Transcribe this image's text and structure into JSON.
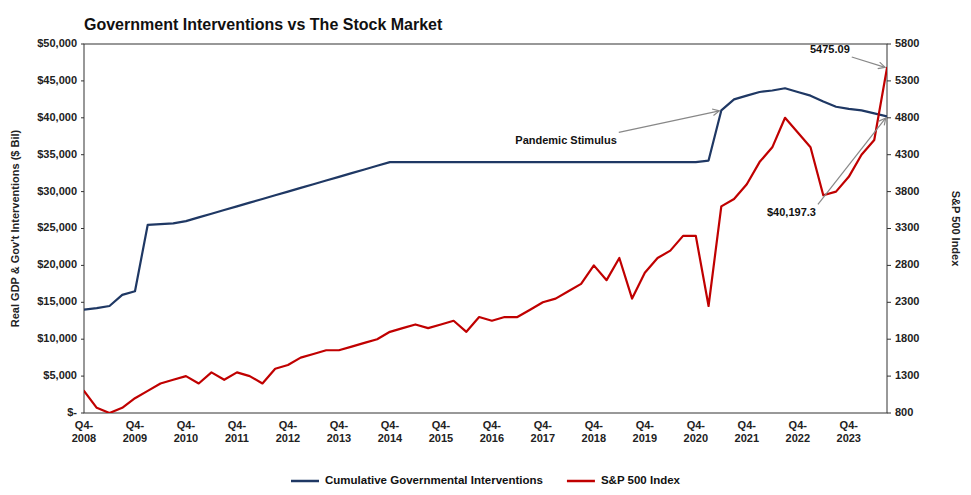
{
  "chart_data": {
    "type": "line",
    "title": "Government Interventions vs The Stock Market",
    "ylabel": "Real GDP & Gov't Interventions ($ Bil)",
    "y2label": "S&P 500 Index",
    "background_color": "#ffffff",
    "categories": [
      "Q4-\n2008",
      null,
      null,
      null,
      "Q4-\n2009",
      null,
      null,
      null,
      "Q4-\n2010",
      null,
      null,
      null,
      "Q4-\n2011",
      null,
      null,
      null,
      "Q4-\n2012",
      null,
      null,
      null,
      "Q4-\n2013",
      null,
      null,
      null,
      "Q4-\n2014",
      null,
      null,
      null,
      "Q4-\n2015",
      null,
      null,
      null,
      "Q4-\n2016",
      null,
      null,
      null,
      "Q4-\n2017",
      null,
      null,
      null,
      "Q4-\n2018",
      null,
      null,
      null,
      "Q4-\n2019",
      null,
      null,
      null,
      "Q4-\n2020",
      null,
      null,
      null,
      "Q4-\n2021",
      null,
      null,
      null,
      "Q4-\n2022",
      null,
      null,
      null,
      "Q4-\n2023",
      null,
      null,
      null
    ],
    "series": [
      {
        "name": "Cumulative Governmental Interventions",
        "color": "#1F3864",
        "axis": "y",
        "values": [
          14000,
          14200,
          14500,
          16000,
          16500,
          25500,
          25600,
          25700,
          26000,
          26500,
          27000,
          27500,
          28000,
          28500,
          29000,
          29500,
          30000,
          30500,
          31000,
          31500,
          32000,
          32500,
          33000,
          33500,
          34000,
          34000,
          34000,
          34000,
          34000,
          34000,
          34000,
          34000,
          34000,
          34000,
          34000,
          34000,
          34000,
          34000,
          34000,
          34000,
          34000,
          34000,
          34000,
          34000,
          34000,
          34000,
          34000,
          34000,
          34000,
          34200,
          41000,
          42500,
          43000,
          43500,
          43700,
          44000,
          43500,
          43000,
          42200,
          41500,
          41200,
          41000,
          40600,
          40197
        ]
      },
      {
        "name": "S&P 500 Index",
        "color": "#C00000",
        "axis": "y2",
        "values": [
          1100,
          870,
          800,
          870,
          1000,
          1100,
          1200,
          1250,
          1300,
          1200,
          1350,
          1250,
          1350,
          1300,
          1200,
          1400,
          1450,
          1550,
          1600,
          1650,
          1650,
          1700,
          1750,
          1800,
          1900,
          1950,
          2000,
          1950,
          2000,
          2050,
          1900,
          2100,
          2050,
          2100,
          2100,
          2200,
          2300,
          2350,
          2450,
          2550,
          2800,
          2600,
          2900,
          2350,
          2700,
          2900,
          3000,
          3200,
          3200,
          2250,
          3600,
          3700,
          3900,
          4200,
          4400,
          4800,
          4600,
          4400,
          3750,
          3800,
          4000,
          4300,
          4500,
          5475
        ]
      }
    ],
    "ylim": [
      0,
      50000
    ],
    "yticks": [
      {
        "value": 0,
        "label": "$-"
      },
      {
        "value": 5000,
        "label": "$5,000"
      },
      {
        "value": 10000,
        "label": "$10,000"
      },
      {
        "value": 15000,
        "label": "$15,000"
      },
      {
        "value": 20000,
        "label": "$20,000"
      },
      {
        "value": 25000,
        "label": "$25,000"
      },
      {
        "value": 30000,
        "label": "$30,000"
      },
      {
        "value": 35000,
        "label": "$35,000"
      },
      {
        "value": 40000,
        "label": "$40,000"
      },
      {
        "value": 45000,
        "label": "$45,000"
      },
      {
        "value": 50000,
        "label": "$50,000"
      }
    ],
    "y2lim": [
      800,
      5800
    ],
    "y2ticks": [
      800,
      1300,
      1800,
      2300,
      2800,
      3300,
      3800,
      4300,
      4800,
      5300,
      5800
    ],
    "annotations": [
      {
        "text": "Pandemic Stimulus",
        "x": 50,
        "y": 41000,
        "axis": "y"
      },
      {
        "text": "5475.09",
        "x": 63,
        "y": 5475,
        "axis": "y2"
      },
      {
        "text": "$40,197.3",
        "x": 63,
        "y": 40197,
        "axis": "y"
      }
    ],
    "grid": false,
    "legend": "bottom"
  }
}
